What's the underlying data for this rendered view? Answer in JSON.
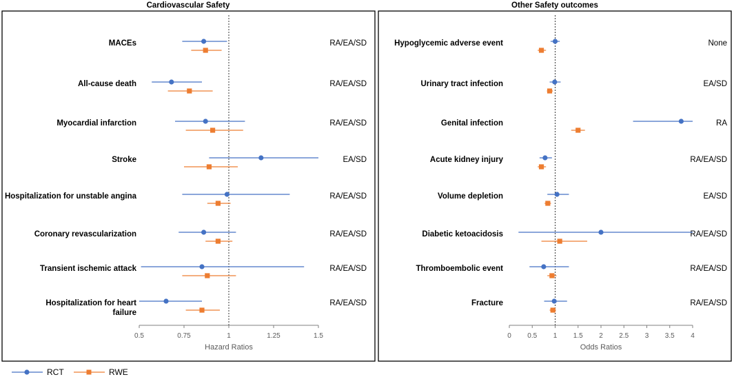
{
  "colors": {
    "rct": "#4472C4",
    "rwe": "#ED7D31",
    "ref_line": "#333333",
    "axis": "#7f7f7f"
  },
  "legend": [
    {
      "key": "rct",
      "label": "RCT",
      "marker": "circle"
    },
    {
      "key": "rwe",
      "label": "RWE",
      "marker": "square"
    }
  ],
  "chart_data": [
    {
      "type": "forest",
      "title": "Cardiovascular Safety",
      "xlabel": "Hazard Ratios",
      "xlim": [
        0.5,
        1.5
      ],
      "xticks": [
        0.5,
        0.75,
        1,
        1.25,
        1.5
      ],
      "xtick_labels": [
        "0.5",
        "0.75",
        "1",
        "1.25",
        "1.5"
      ],
      "reference_line": 1,
      "rows": [
        {
          "label": [
            "MACEs"
          ],
          "source": "RA/EA/SD",
          "rct": {
            "est": 0.86,
            "lo": 0.74,
            "hi": 0.99
          },
          "rwe": {
            "est": 0.87,
            "lo": 0.79,
            "hi": 0.96
          }
        },
        {
          "label": [
            "All-cause death"
          ],
          "source": "RA/EA/SD",
          "rct": {
            "est": 0.68,
            "lo": 0.57,
            "hi": 0.85
          },
          "rwe": {
            "est": 0.78,
            "lo": 0.66,
            "hi": 0.91
          }
        },
        {
          "label": [
            "Myocardial infarction"
          ],
          "source": "RA/EA/SD",
          "rct": {
            "est": 0.87,
            "lo": 0.7,
            "hi": 1.09
          },
          "rwe": {
            "est": 0.91,
            "lo": 0.76,
            "hi": 1.08
          }
        },
        {
          "label": [
            "Stroke"
          ],
          "source": "EA/SD",
          "rct": {
            "est": 1.18,
            "lo": 0.89,
            "hi": 1.5
          },
          "rwe": {
            "est": 0.89,
            "lo": 0.75,
            "hi": 1.05
          }
        },
        {
          "label": [
            "Hospitalization for unstable angina"
          ],
          "source": "RA/EA/SD",
          "rct": {
            "est": 0.99,
            "lo": 0.74,
            "hi": 1.34
          },
          "rwe": {
            "est": 0.94,
            "lo": 0.88,
            "hi": 1.01
          }
        },
        {
          "label": [
            "Coronary revascularization"
          ],
          "source": "RA/EA/SD",
          "rct": {
            "est": 0.86,
            "lo": 0.72,
            "hi": 1.04
          },
          "rwe": {
            "est": 0.94,
            "lo": 0.87,
            "hi": 1.02
          }
        },
        {
          "label": [
            "Transient ischemic attack"
          ],
          "source": "RA/EA/SD",
          "rct": {
            "est": 0.85,
            "lo": 0.51,
            "hi": 1.42
          },
          "rwe": {
            "est": 0.88,
            "lo": 0.74,
            "hi": 1.04
          }
        },
        {
          "label": [
            "Hospitalization for heart",
            "failure"
          ],
          "source": "RA/EA/SD",
          "rct": {
            "est": 0.65,
            "lo": 0.5,
            "hi": 0.85
          },
          "rwe": {
            "est": 0.85,
            "lo": 0.76,
            "hi": 0.95
          }
        }
      ]
    },
    {
      "type": "forest",
      "title": "Other Safety outcomes",
      "xlabel": "Odds Ratios",
      "xlim": [
        0,
        4
      ],
      "xticks": [
        0,
        0.5,
        1,
        1.5,
        2,
        2.5,
        3,
        3.5,
        4
      ],
      "xtick_labels": [
        "0",
        "0.5",
        "1",
        "1.5",
        "2",
        "2.5",
        "3",
        "3.5",
        "4"
      ],
      "reference_line": 1,
      "rows": [
        {
          "label": [
            "Hypoglycemic adverse event"
          ],
          "source": "None",
          "rct": {
            "est": 1.0,
            "lo": 0.9,
            "hi": 1.1
          },
          "rwe": {
            "est": 0.7,
            "lo": 0.62,
            "hi": 0.8
          }
        },
        {
          "label": [
            "Urinary tract infection"
          ],
          "source": "EA/SD",
          "rct": {
            "est": 0.99,
            "lo": 0.88,
            "hi": 1.12
          },
          "rwe": {
            "est": 0.88,
            "lo": 0.82,
            "hi": 0.95
          }
        },
        {
          "label": [
            "Genital infection"
          ],
          "source": "RA",
          "rct": {
            "est": 3.75,
            "lo": 2.7,
            "hi": 4.0
          },
          "rwe": {
            "est": 1.5,
            "lo": 1.35,
            "hi": 1.65
          }
        },
        {
          "label": [
            "Acute kidney injury"
          ],
          "source": "RA/EA/SD",
          "rct": {
            "est": 0.78,
            "lo": 0.66,
            "hi": 0.93
          },
          "rwe": {
            "est": 0.7,
            "lo": 0.62,
            "hi": 0.8
          }
        },
        {
          "label": [
            "Volume depletion"
          ],
          "source": "EA/SD",
          "rct": {
            "est": 1.04,
            "lo": 0.83,
            "hi": 1.3
          },
          "rwe": {
            "est": 0.84,
            "lo": 0.77,
            "hi": 0.91
          }
        },
        {
          "label": [
            "Diabetic ketoacidosis"
          ],
          "source": "RA/EA/SD",
          "rct": {
            "est": 2.0,
            "lo": 0.2,
            "hi": 4.0
          },
          "rwe": {
            "est": 1.1,
            "lo": 0.7,
            "hi": 1.7
          }
        },
        {
          "label": [
            "Thromboembolic event"
          ],
          "source": "RA/EA/SD",
          "rct": {
            "est": 0.75,
            "lo": 0.44,
            "hi": 1.3
          },
          "rwe": {
            "est": 0.93,
            "lo": 0.83,
            "hi": 1.03
          }
        },
        {
          "label": [
            "Fracture"
          ],
          "source": "RA/EA/SD",
          "rct": {
            "est": 0.98,
            "lo": 0.76,
            "hi": 1.26
          },
          "rwe": {
            "est": 0.95,
            "lo": 0.88,
            "hi": 1.02
          }
        }
      ]
    }
  ]
}
